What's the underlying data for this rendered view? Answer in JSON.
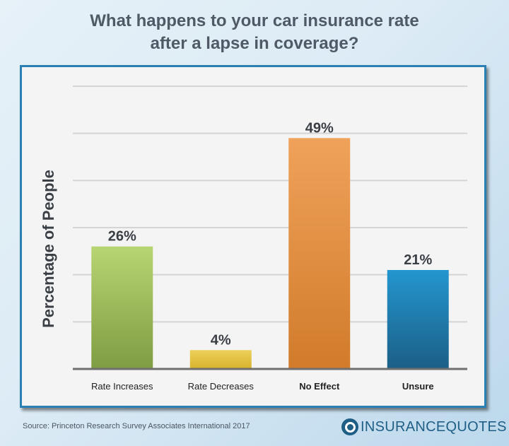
{
  "chart_data": {
    "type": "bar",
    "title_lines": [
      "What happens to your car insurance rate",
      "after a lapse in coverage?"
    ],
    "ylabel": "Percentage of People",
    "xlabel": "",
    "categories": [
      "Rate Increases",
      "Rate Decreases",
      "No Effect",
      "Unsure"
    ],
    "values": [
      26,
      4,
      49,
      21
    ],
    "value_labels": [
      "26%",
      "4%",
      "49%",
      "21%"
    ],
    "ylim": [
      0,
      60
    ],
    "gridlines": [
      10,
      20,
      30,
      40,
      50,
      60
    ],
    "grid": true,
    "bar_colors": [
      [
        "#b7d572",
        "#7f9d42"
      ],
      [
        "#ecd05a",
        "#d7b22c"
      ],
      [
        "#f0a25a",
        "#d17b2b"
      ],
      [
        "#2496cf",
        "#1b5f86"
      ]
    ],
    "category_bold": [
      false,
      false,
      true,
      true
    ]
  },
  "footer": {
    "source": "Source: Princeton Research Survey Associates International 2017",
    "logo_part1": "INSURANCE",
    "logo_part2": "QUOTES"
  }
}
